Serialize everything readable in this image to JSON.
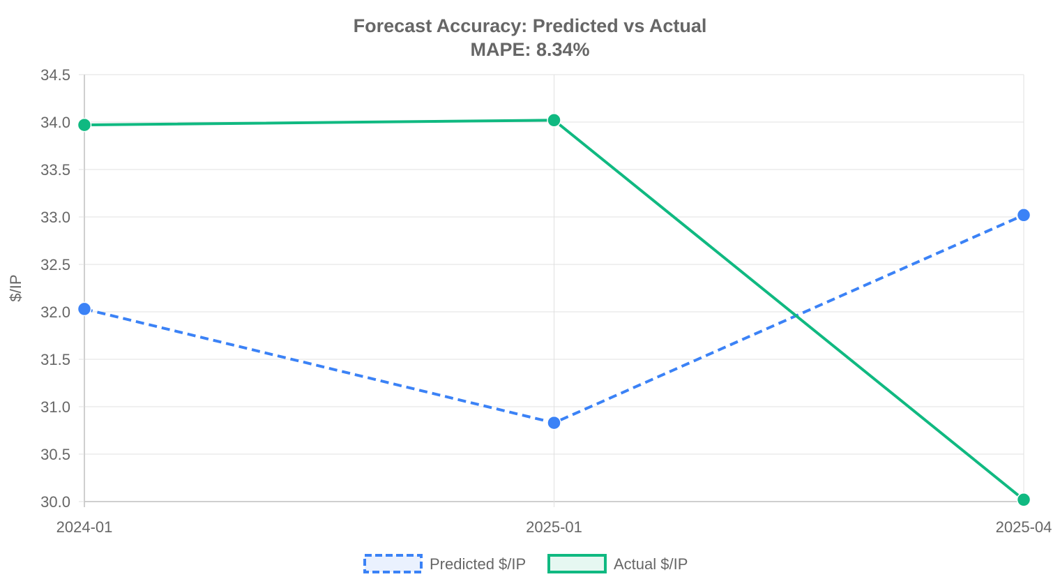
{
  "chart_data": {
    "type": "line",
    "title": "Forecast Accuracy: Predicted vs Actual",
    "subtitle": "MAPE: 8.34%",
    "xlabel": "",
    "ylabel": "$/IP",
    "categories": [
      "2024-01",
      "2025-01",
      "2025-04"
    ],
    "ylim": [
      30.0,
      34.5
    ],
    "yticks": [
      "30.0",
      "30.5",
      "31.0",
      "31.5",
      "32.0",
      "32.5",
      "33.0",
      "33.5",
      "34.0",
      "34.5"
    ],
    "grid": true,
    "legend_position": "bottom",
    "series": [
      {
        "name": "Predicted $/IP",
        "values": [
          32.03,
          30.83,
          33.02
        ],
        "color": "#3b82f6",
        "fill": "#eaf1fe",
        "dashed": true
      },
      {
        "name": "Actual $/IP",
        "values": [
          33.97,
          34.02,
          30.02
        ],
        "color": "#10b981",
        "fill": "#e6f7f1",
        "dashed": false
      }
    ]
  }
}
